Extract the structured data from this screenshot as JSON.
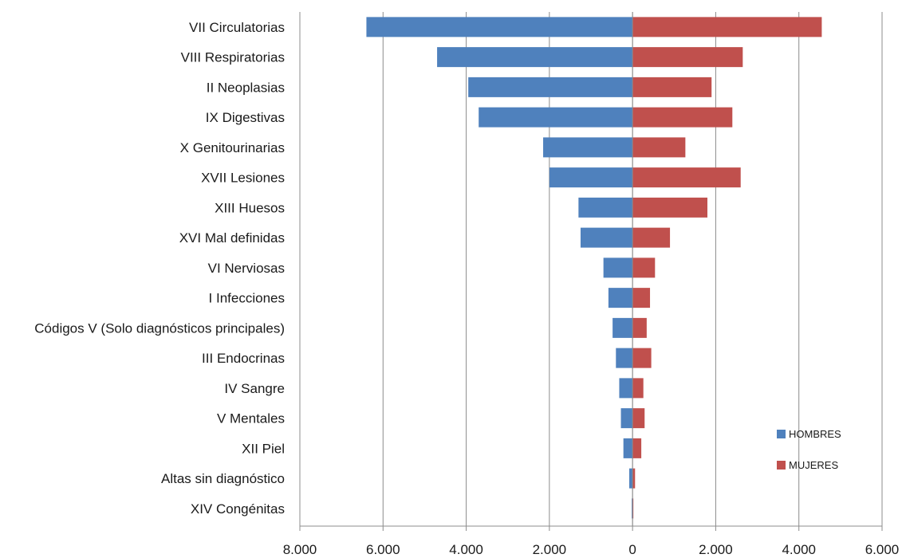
{
  "chart_data": {
    "type": "bar",
    "orientation": "horizontal",
    "layout": "diverging",
    "categories": [
      "VII Circulatorias",
      "VIII Respiratorias",
      "II Neoplasias",
      "IX Digestivas",
      "X Genitourinarias",
      "XVII Lesiones",
      "XIII Huesos",
      "XVI Mal definidas",
      "VI Nerviosas",
      "I Infecciones",
      "Códigos V (Solo diagnósticos principales)",
      "III Endocrinas",
      "IV Sangre",
      "V Mentales",
      "XII Piel",
      "Altas sin diagnóstico",
      "XIV Congénitas"
    ],
    "series": [
      {
        "name": "HOMBRES",
        "color": "#4f81bd",
        "side": "left",
        "values": [
          6400,
          4700,
          3950,
          3700,
          2150,
          2000,
          1300,
          1250,
          700,
          580,
          480,
          400,
          320,
          280,
          220,
          80,
          20
        ]
      },
      {
        "name": "MUJERES",
        "color": "#c0504d",
        "side": "right",
        "values": [
          4550,
          2650,
          1900,
          2400,
          1270,
          2600,
          1800,
          900,
          540,
          420,
          340,
          450,
          260,
          290,
          210,
          60,
          20
        ]
      }
    ],
    "xlim": [
      -8000,
      6000
    ],
    "xticks": [
      -8000,
      -6000,
      -4000,
      -2000,
      0,
      2000,
      4000,
      6000
    ],
    "xtick_labels": [
      "8.000",
      "6.000",
      "4.000",
      "2.000",
      "0",
      "2.000",
      "4.000",
      "6.000"
    ],
    "grid": "vertical",
    "legend_position": "bottom-right",
    "title": "",
    "xlabel": "",
    "ylabel": ""
  }
}
